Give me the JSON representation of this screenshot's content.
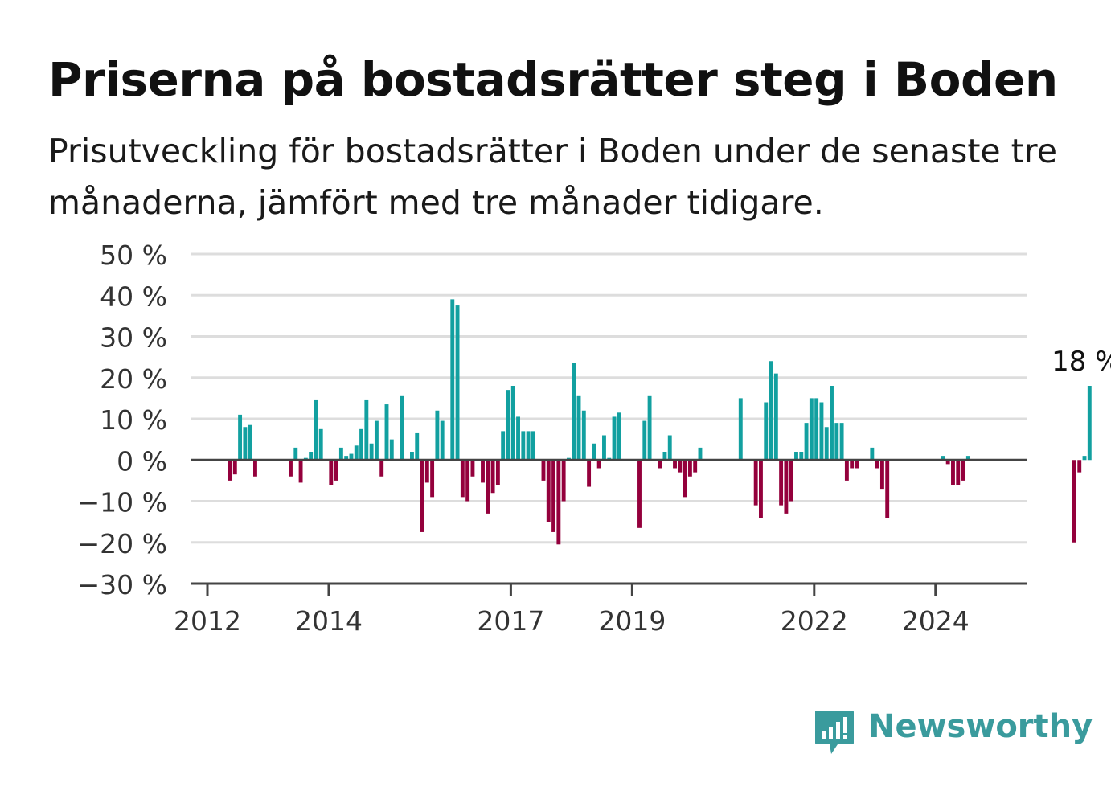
{
  "chart_data": {
    "type": "bar",
    "title": "Priserna på bostadsrätter steg i Boden",
    "subtitle": "Prisutveckling för bostadsrätter i Boden under de senaste tre månaderna, jämfört med tre månader tidigare.",
    "ylim": [
      -30,
      50
    ],
    "yticks": [
      50,
      40,
      30,
      20,
      10,
      0,
      -10,
      -20,
      -30
    ],
    "ytick_labels": [
      "50 %",
      "40 %",
      "30 %",
      "20 %",
      "10 %",
      "0 %",
      "−10 %",
      "−20 %",
      "−30 %"
    ],
    "xticks": [
      2012,
      2014,
      2017,
      2019,
      2022,
      2024
    ],
    "grid": true,
    "positive_color": "#12a0a0",
    "negative_color": "#94003c",
    "start": {
      "year": 2012,
      "month": 1
    },
    "values": [
      0,
      0,
      0,
      0,
      -5,
      -3.5,
      11,
      8,
      8.5,
      -4,
      0,
      0,
      0,
      0,
      0,
      0,
      -4,
      3,
      -5.5,
      0.5,
      2,
      14.5,
      7.5,
      0,
      -6,
      -5,
      3,
      1,
      1.5,
      3.5,
      7.5,
      14.5,
      4,
      9.5,
      -4,
      13.5,
      5,
      0,
      15.5,
      0,
      2,
      6.5,
      -17.5,
      -5.5,
      -9,
      12,
      9.5,
      0,
      39,
      37.5,
      -9,
      -10,
      -4,
      0,
      -5.5,
      -13,
      -8,
      -6,
      7,
      17,
      18,
      10.5,
      7,
      7,
      7,
      0,
      -5,
      -15,
      -17.5,
      -20.5,
      -10,
      0.5,
      23.5,
      15.5,
      12,
      -6.5,
      4,
      -2,
      6,
      0.5,
      10.5,
      11.5,
      0,
      0,
      0,
      -16.5,
      9.5,
      15.5,
      0,
      -2,
      2,
      6,
      -2,
      -3,
      -9,
      -4,
      -3,
      3,
      0,
      0,
      0,
      0,
      0,
      0,
      0,
      15,
      0,
      0,
      -11,
      -14,
      14,
      24,
      21,
      -11,
      -13,
      -10,
      2,
      2,
      9,
      15,
      15,
      14,
      8,
      18,
      9,
      9,
      -5,
      -2,
      -2,
      0,
      0,
      3,
      -2,
      -7,
      -14,
      0,
      0,
      0,
      0,
      0,
      0,
      0,
      0,
      0,
      0,
      1,
      -1,
      -6,
      -6,
      -5,
      1,
      0,
      0,
      0,
      0,
      0,
      0,
      0,
      0,
      0,
      0,
      0,
      0,
      0,
      0,
      0,
      0,
      0,
      0,
      0,
      0,
      -20,
      -3,
      1,
      18
    ],
    "annotation": {
      "text": "18 %",
      "value": 18
    }
  },
  "branding": {
    "logo_text": "Newsworthy",
    "logo_icon": "newsworthy-chart-bubble-icon",
    "color": "#3a9b9d"
  }
}
